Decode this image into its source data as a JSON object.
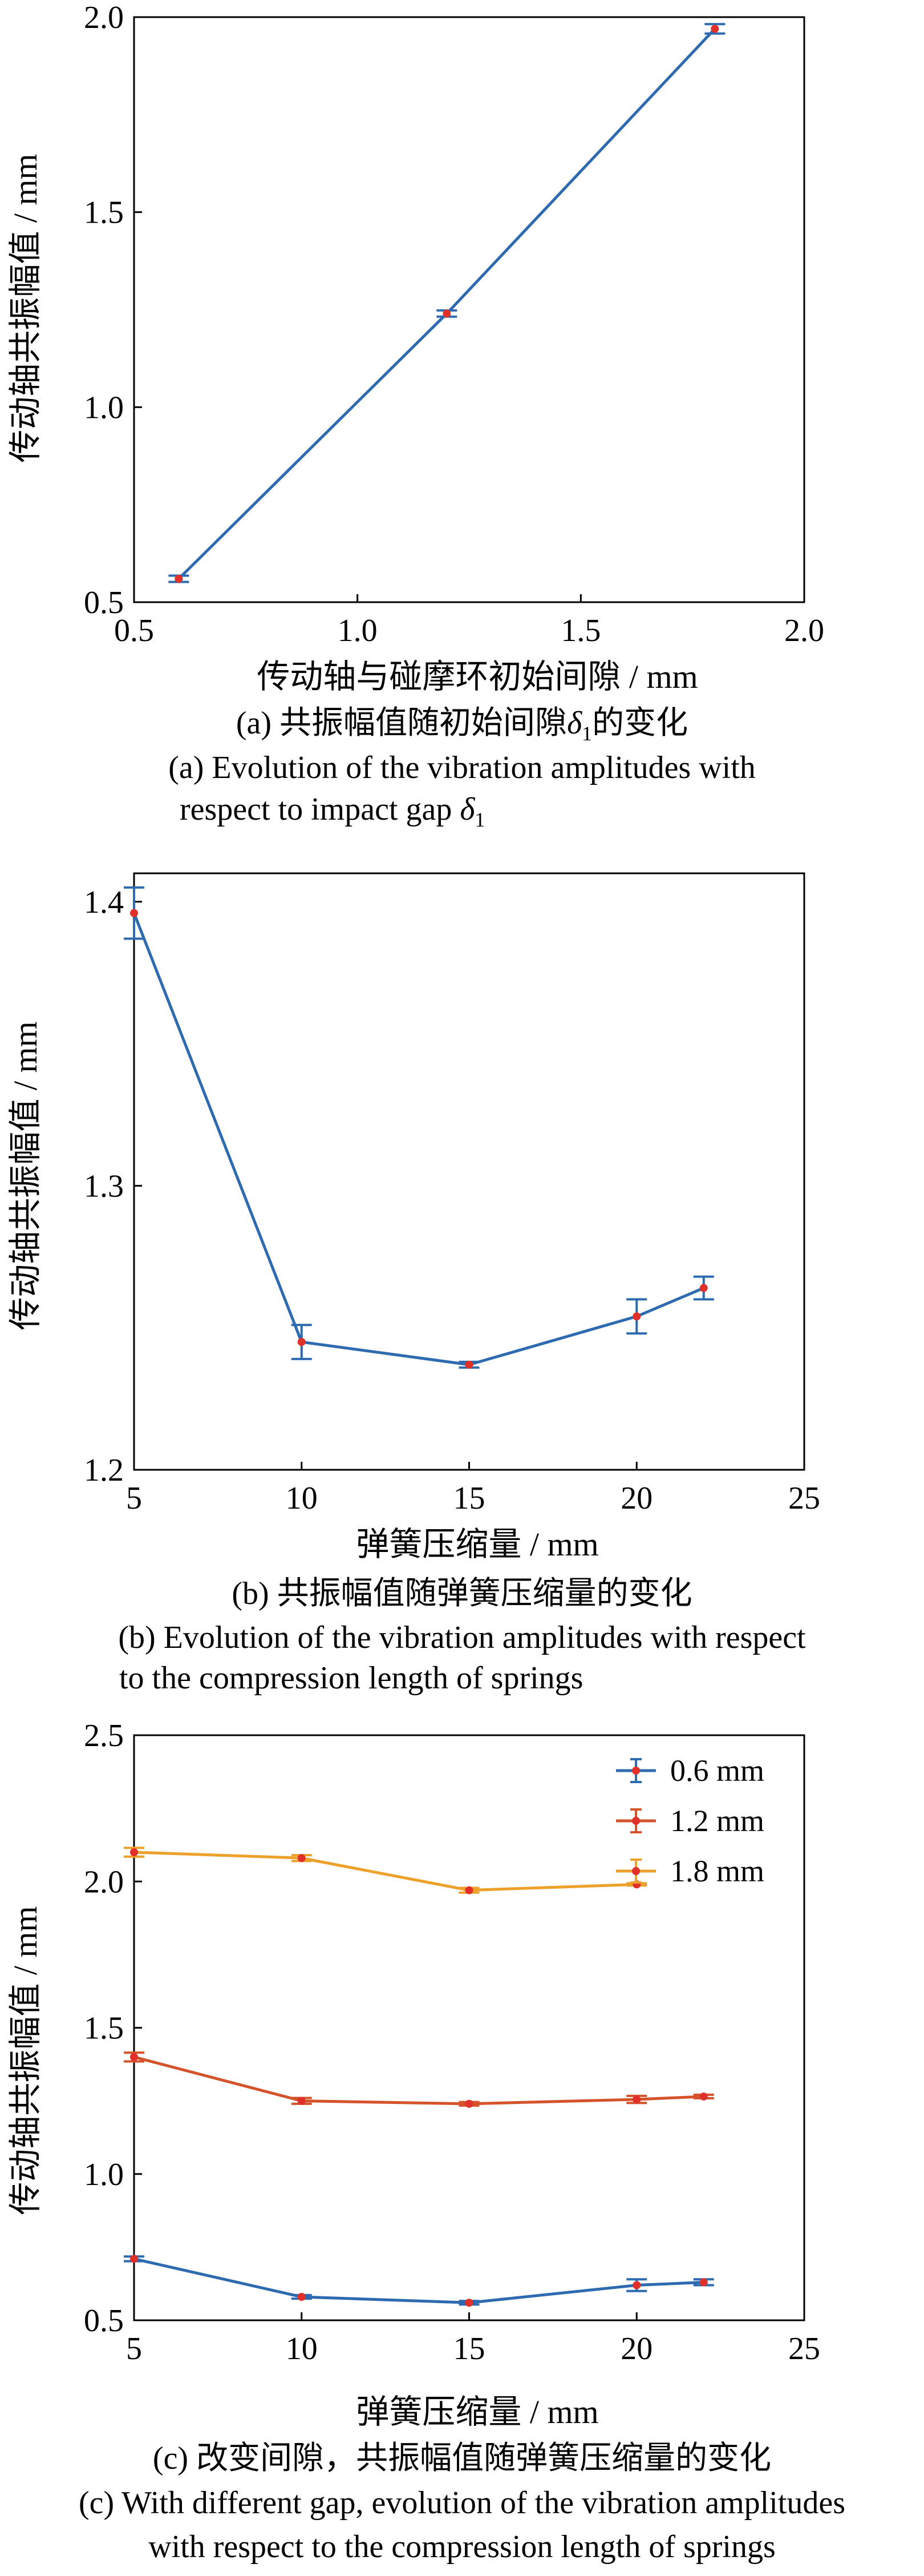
{
  "chart_data": [
    {
      "type": "line",
      "xlabel": "传动轴与碰摩环初始间隙 / mm",
      "ylabel": "传动轴共振幅值 / mm",
      "xlim": [
        0.5,
        2.0
      ],
      "ylim": [
        0.5,
        2.0
      ],
      "xticks": [
        "0.5",
        "1.0",
        "1.5",
        "2.0"
      ],
      "yticks": [
        "0.5",
        "1.0",
        "1.5",
        "2.0"
      ],
      "series": [
        {
          "color": "#2e6ab0",
          "x": [
            0.6,
            1.2,
            1.8
          ],
          "y": [
            0.56,
            1.24,
            1.97
          ],
          "err": [
            0.008,
            0.008,
            0.012
          ]
        }
      ],
      "caption_zh_parts": [
        "(a) 共振幅值随初始间隙",
        "δ",
        "1",
        "的变化"
      ],
      "caption_en_line1": "(a) Evolution of the vibration amplitudes with",
      "caption_en_line2_parts": [
        "respect to impact gap ",
        "δ",
        "1"
      ]
    },
    {
      "type": "line",
      "xlabel": "弹簧压缩量 / mm",
      "ylabel": "传动轴共振幅值 / mm",
      "xlim": [
        5,
        25
      ],
      "ylim": [
        1.2,
        1.41
      ],
      "xticks": [
        "5",
        "10",
        "15",
        "20",
        "25"
      ],
      "yticks": [
        "1.2",
        "1.3",
        "1.4"
      ],
      "series": [
        {
          "color": "#2e6ab0",
          "x": [
            5,
            10,
            15,
            20,
            22
          ],
          "y": [
            1.396,
            1.245,
            1.237,
            1.254,
            1.264
          ],
          "err": [
            0.009,
            0.006,
            0.001,
            0.006,
            0.004
          ]
        }
      ],
      "caption_zh": "(b) 共振幅值随弹簧压缩量的变化",
      "caption_en_line1": "(b) Evolution of the vibration amplitudes with respect",
      "caption_en_line2": "to the compression length of springs"
    },
    {
      "type": "line",
      "xlabel": "弹簧压缩量 / mm",
      "ylabel": "传动轴共振幅值 / mm",
      "xlim": [
        5,
        25
      ],
      "ylim": [
        0.5,
        2.5
      ],
      "xticks": [
        "5",
        "10",
        "15",
        "20",
        "25"
      ],
      "yticks": [
        "0.5",
        "1.0",
        "1.5",
        "2.0",
        "2.5"
      ],
      "legend_position": "top-right",
      "series": [
        {
          "name": "0.6 mm",
          "color": "#2e6ab0",
          "x": [
            5,
            10,
            15,
            20,
            22
          ],
          "y": [
            0.71,
            0.58,
            0.56,
            0.62,
            0.63
          ],
          "err": [
            0.008,
            0.006,
            0.006,
            0.02,
            0.01
          ]
        },
        {
          "name": "1.2 mm",
          "color": "#d4532a",
          "x": [
            5,
            10,
            15,
            20,
            22
          ],
          "y": [
            1.4,
            1.25,
            1.24,
            1.255,
            1.265
          ],
          "err": [
            0.015,
            0.01,
            0.006,
            0.012,
            0.006
          ]
        },
        {
          "name": "1.8 mm",
          "color": "#eda12a",
          "x": [
            5,
            10,
            15,
            20
          ],
          "y": [
            2.1,
            2.08,
            1.97,
            1.99
          ],
          "err": [
            0.015,
            0.01,
            0.008,
            0.004
          ]
        }
      ],
      "caption_zh": "(c) 改变间隙，共振幅值随弹簧压缩量的变化",
      "caption_en_line1": "(c) With different gap, evolution of the vibration amplitudes",
      "caption_en_line2": "with respect to the compression length of springs"
    }
  ]
}
